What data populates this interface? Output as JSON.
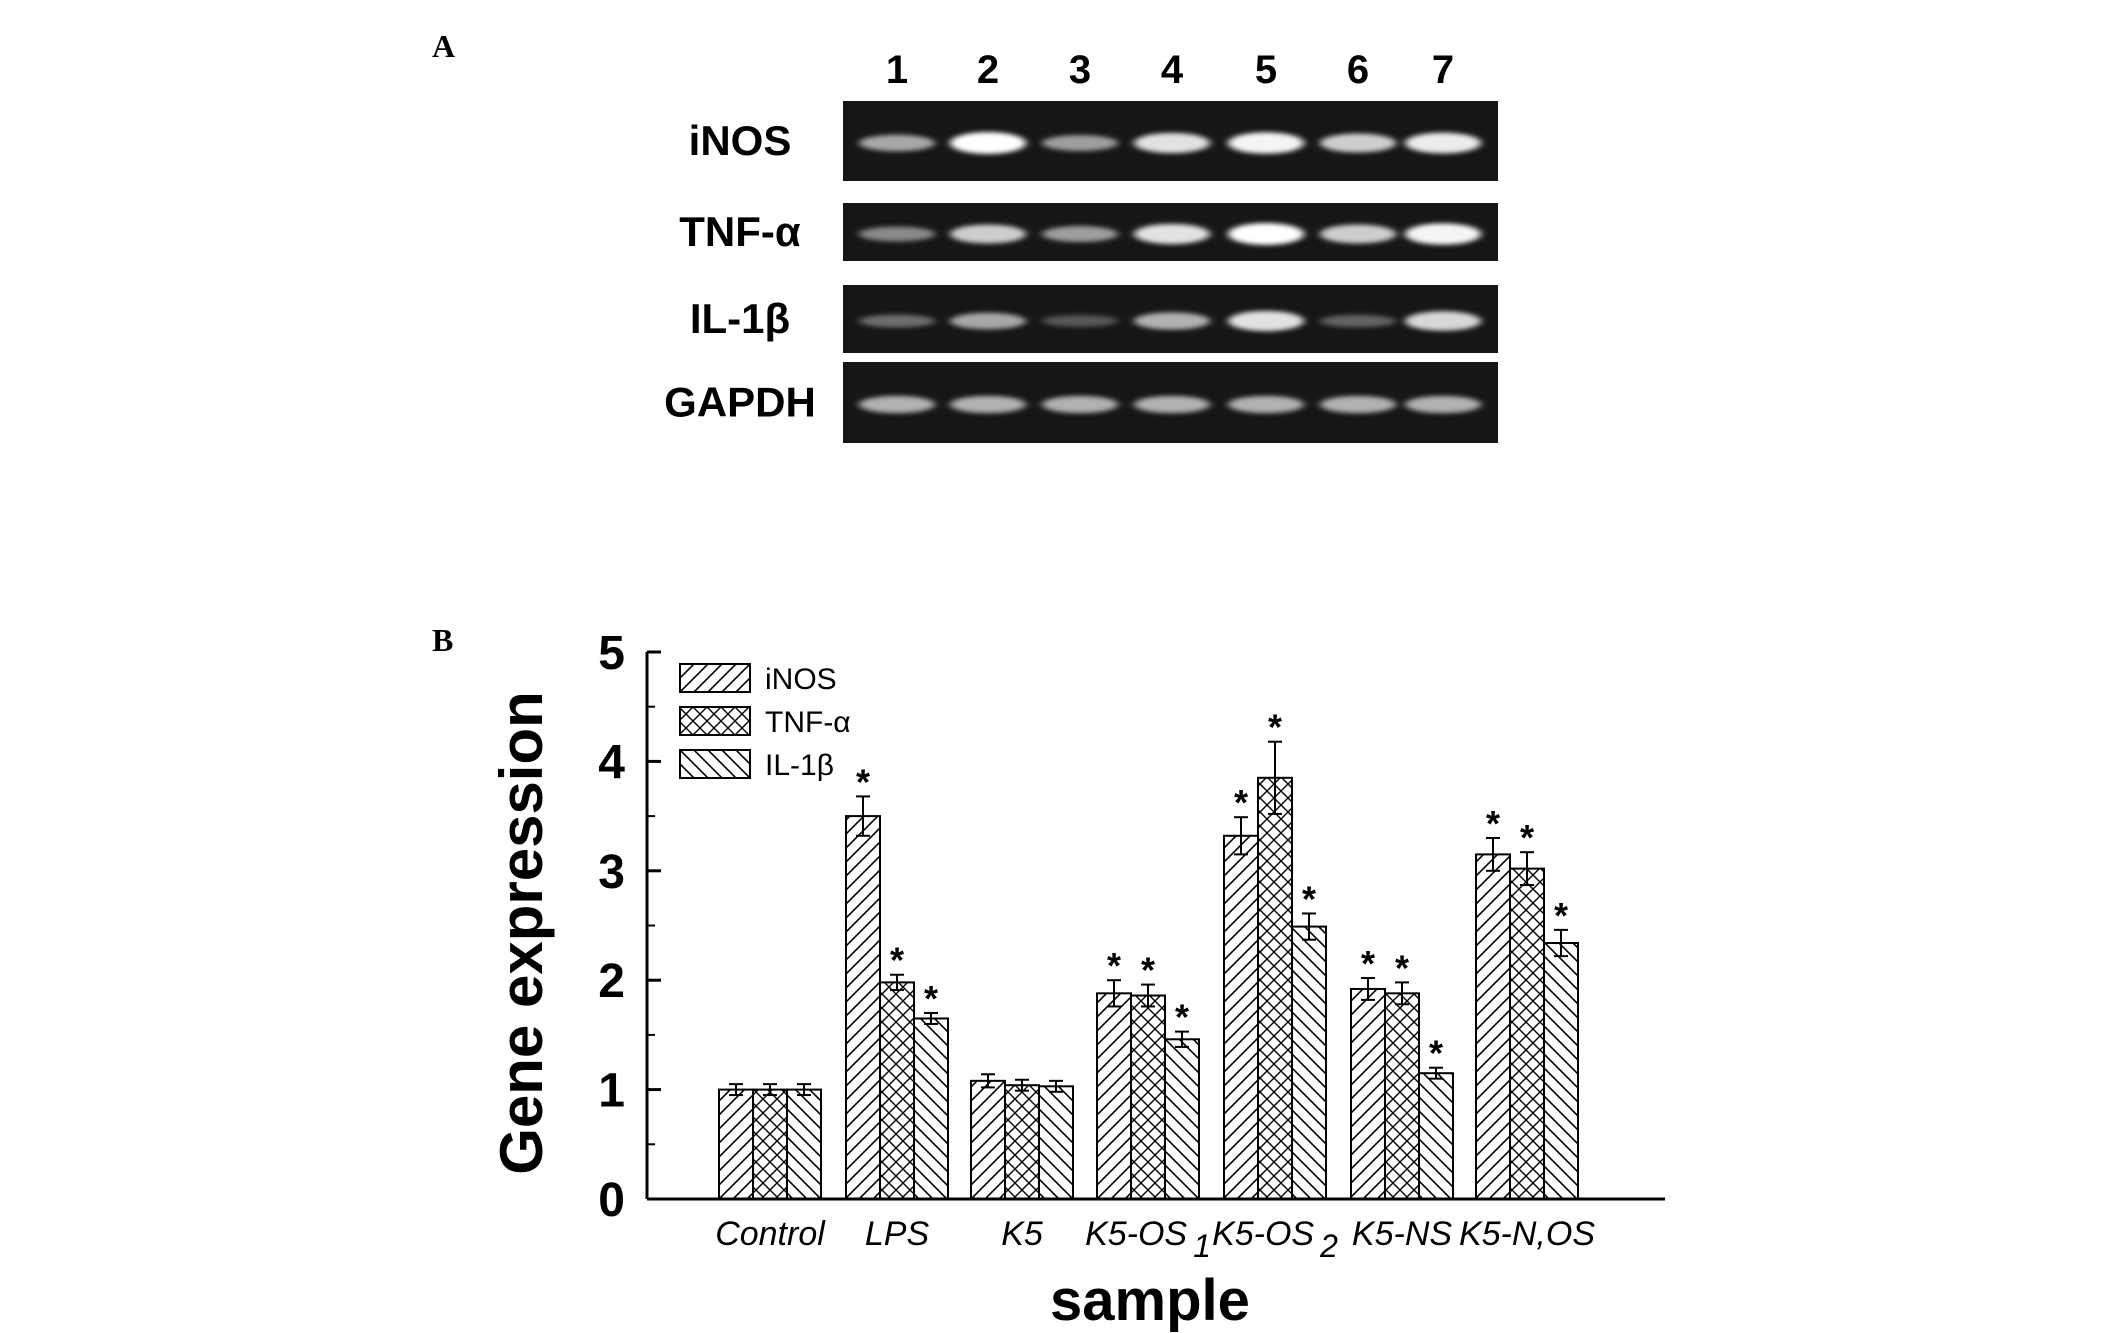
{
  "panel_a": {
    "letter": "A",
    "lanes": [
      "1",
      "2",
      "3",
      "4",
      "5",
      "6",
      "7"
    ],
    "genes": [
      {
        "name": "iNOS",
        "band_intensity": [
          0.55,
          1.0,
          0.5,
          0.85,
          0.95,
          0.75,
          0.9
        ]
      },
      {
        "name": "TNF-α",
        "band_intensity": [
          0.4,
          0.75,
          0.5,
          0.85,
          1.0,
          0.75,
          0.95
        ]
      },
      {
        "name": "IL-1β",
        "band_intensity": [
          0.25,
          0.55,
          0.15,
          0.6,
          0.85,
          0.2,
          0.8
        ]
      },
      {
        "name": "GAPDH",
        "band_intensity": [
          0.6,
          0.6,
          0.6,
          0.6,
          0.6,
          0.6,
          0.6
        ]
      }
    ]
  },
  "panel_b": {
    "letter": "B"
  },
  "chart_data": {
    "type": "bar",
    "xlabel": "sample",
    "ylabel": "Gene expression",
    "ylim": [
      0,
      5
    ],
    "yticks": [
      "0",
      "1",
      "2",
      "3",
      "4",
      "5"
    ],
    "categories": [
      {
        "label": "Control",
        "subscript": ""
      },
      {
        "label": "LPS",
        "subscript": ""
      },
      {
        "label": "K5",
        "subscript": ""
      },
      {
        "label": "K5-OS",
        "subscript": "1"
      },
      {
        "label": "K5-OS",
        "subscript": "2"
      },
      {
        "label": "K5-NS",
        "subscript": ""
      },
      {
        "label": "K5-N,OS",
        "subscript": ""
      }
    ],
    "series": [
      {
        "name": "iNOS",
        "hatch": "diagonal-up",
        "values": [
          1.0,
          3.5,
          1.08,
          1.88,
          3.32,
          1.92,
          3.15
        ],
        "errors": [
          0.05,
          0.18,
          0.06,
          0.12,
          0.17,
          0.1,
          0.15
        ],
        "significant": [
          false,
          true,
          false,
          true,
          true,
          true,
          true
        ]
      },
      {
        "name": "TNF-α",
        "hatch": "crosshatch",
        "values": [
          1.0,
          1.98,
          1.04,
          1.86,
          3.85,
          1.88,
          3.02
        ],
        "errors": [
          0.05,
          0.07,
          0.05,
          0.1,
          0.33,
          0.1,
          0.15
        ],
        "significant": [
          false,
          true,
          false,
          true,
          true,
          true,
          true
        ]
      },
      {
        "name": "IL-1β",
        "hatch": "diagonal-down",
        "values": [
          1.0,
          1.65,
          1.03,
          1.46,
          2.49,
          1.15,
          2.34
        ],
        "errors": [
          0.05,
          0.05,
          0.05,
          0.07,
          0.12,
          0.05,
          0.12
        ],
        "significant": [
          false,
          true,
          false,
          true,
          true,
          true,
          true
        ]
      }
    ],
    "significance_marker": "*",
    "legend_position": "top-left"
  }
}
